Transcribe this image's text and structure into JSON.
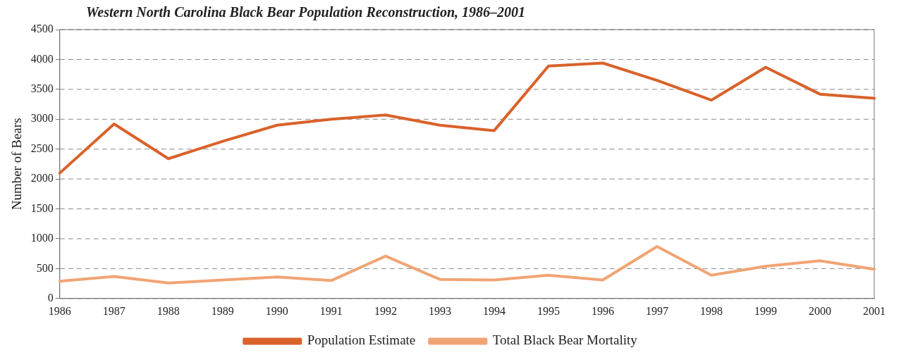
{
  "chart_data": {
    "type": "line",
    "title": "Western North Carolina Black Bear Population Reconstruction, 1986–2001",
    "ylabel": "Number of Bears",
    "categories": [
      "1986",
      "1987",
      "1988",
      "1989",
      "1990",
      "1991",
      "1992",
      "1993",
      "1994",
      "1995",
      "1996",
      "1997",
      "1998",
      "1999",
      "2000",
      "2001"
    ],
    "series": [
      {
        "name": "Population Estimate",
        "color": "#d9622b",
        "values": [
          2100,
          2920,
          2340,
          2630,
          2900,
          3000,
          3070,
          2900,
          2810,
          3890,
          3940,
          3650,
          3320,
          3870,
          3420,
          3350
        ]
      },
      {
        "name": "Total Black Bear Mortality",
        "color": "#f0a474",
        "values": [
          290,
          370,
          260,
          310,
          360,
          300,
          710,
          320,
          310,
          390,
          310,
          870,
          390,
          540,
          630,
          490
        ]
      }
    ],
    "ylim": [
      0,
      4500
    ],
    "yticks": [
      0,
      500,
      1000,
      1500,
      2000,
      2500,
      3000,
      3500,
      4000,
      4500
    ],
    "grid": "y",
    "legend": "bottom",
    "marker": "none",
    "line_style": "solid"
  }
}
